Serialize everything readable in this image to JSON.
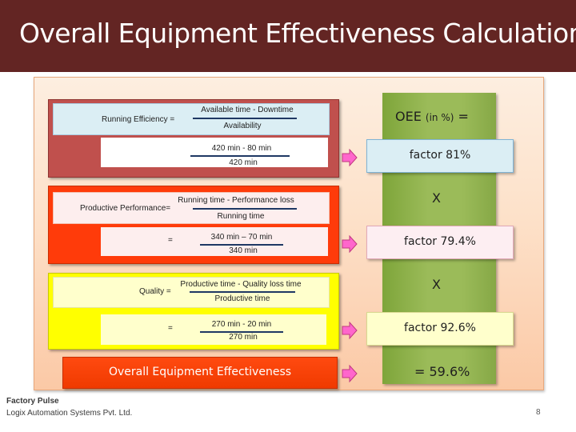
{
  "title": "Overall Equipment Effectiveness Calculation",
  "formulas": [
    {
      "label": "Running Efficiency =",
      "numerator": "Available time - Downtime",
      "denominator": "Availability",
      "calc_prefix": "",
      "calc_numerator": "420 min - 80 min",
      "calc_denominator": "420 min",
      "result": "factor 81%"
    },
    {
      "label": "Productive  Performance=",
      "numerator": "Running time - Performance loss",
      "denominator": "Running time",
      "calc_prefix": "=",
      "calc_numerator": "340 min – 70 min",
      "calc_denominator": "340 min",
      "result": "factor 79.4%"
    },
    {
      "label": "Quality  =",
      "numerator": "Productive time - Quality loss time",
      "denominator": "Productive time",
      "calc_prefix": "=",
      "calc_numerator": "270 min - 20 min",
      "calc_denominator": "270 min",
      "result": "factor 92.6%"
    }
  ],
  "oee": {
    "label": "OEE",
    "unit": "(in %)",
    "equals": "="
  },
  "multiply_sign": "X",
  "total": {
    "label": "Overall Equipment Effectiveness",
    "value": "= 59.6%"
  },
  "footer": {
    "brand": "Factory Pulse",
    "company": "Logix Automation Systems Pvt. Ltd.",
    "page": "8"
  },
  "colors": {
    "header": "#632523",
    "block_running": "#c0504d",
    "block_performance": "#ff3b0a",
    "block_quality": "#ffff00",
    "oee_column": "#9bbb59",
    "arrow": "#ff66cc"
  }
}
